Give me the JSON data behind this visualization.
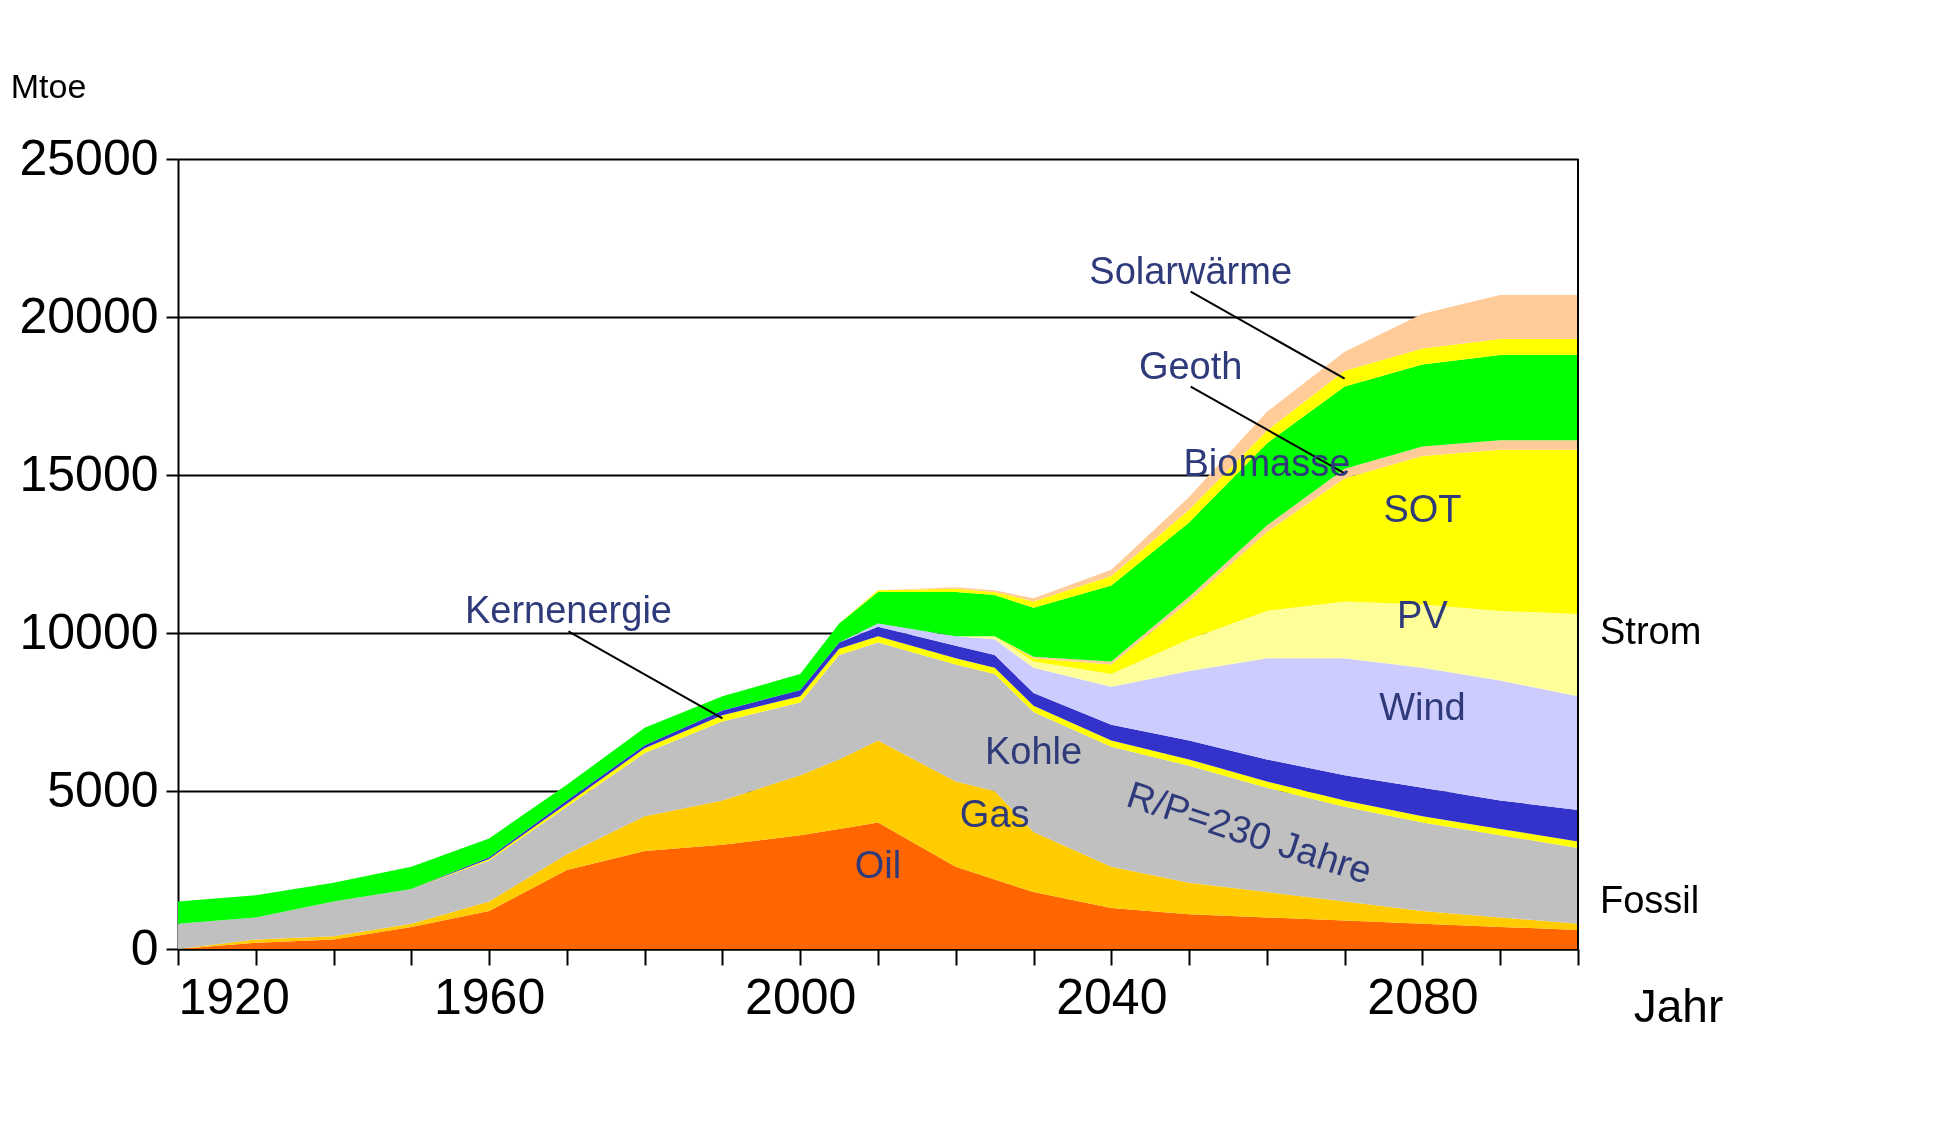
{
  "chart_data": {
    "type": "area",
    "stacked": true,
    "xlabel": "Jahr",
    "ylabel": "Mtoe",
    "x": [
      1920,
      1930,
      1940,
      1950,
      1960,
      1970,
      1980,
      1990,
      2000,
      2005,
      2010,
      2020,
      2025,
      2030,
      2040,
      2050,
      2060,
      2070,
      2080,
      2090,
      2100
    ],
    "series": [
      {
        "name": "Oil",
        "color": "#ff6600",
        "values": [
          0,
          200,
          300,
          700,
          1200,
          2500,
          3100,
          3300,
          3600,
          3800,
          4000,
          2600,
          2200,
          1800,
          1300,
          1100,
          1000,
          900,
          800,
          700,
          600
        ]
      },
      {
        "name": "Gas",
        "color": "#ffcc00",
        "values": [
          0,
          100,
          100,
          100,
          300,
          500,
          1100,
          1400,
          1900,
          2200,
          2600,
          2700,
          2800,
          1900,
          1300,
          1000,
          800,
          600,
          400,
          300,
          200
        ]
      },
      {
        "name": "Kohle",
        "color": "#c0c0c0",
        "values": [
          800,
          700,
          1100,
          1100,
          1300,
          1500,
          2000,
          2500,
          2300,
          3300,
          3100,
          3700,
          3700,
          3800,
          3800,
          3700,
          3300,
          3000,
          2800,
          2600,
          2400
        ]
      },
      {
        "name": "Kernenergie",
        "color": "#ffff00",
        "values": [
          0,
          0,
          0,
          0,
          50,
          100,
          150,
          200,
          200,
          200,
          200,
          200,
          200,
          200,
          200,
          200,
          200,
          200,
          200,
          200,
          200
        ]
      },
      {
        "color": "#3333cc",
        "values": [
          0,
          0,
          0,
          0,
          50,
          100,
          100,
          150,
          200,
          200,
          300,
          400,
          400,
          400,
          500,
          600,
          700,
          800,
          900,
          900,
          1000
        ]
      },
      {
        "name": "Wind",
        "color": "#ccccff",
        "values": [
          0,
          0,
          0,
          0,
          0,
          0,
          0,
          0,
          0,
          0,
          100,
          300,
          500,
          800,
          1200,
          2200,
          3200,
          3700,
          3800,
          3800,
          3600
        ]
      },
      {
        "name": "PV",
        "color": "#ffff99",
        "values": [
          0,
          0,
          0,
          0,
          0,
          0,
          0,
          0,
          0,
          0,
          0,
          0,
          100,
          200,
          400,
          1000,
          1500,
          1800,
          2000,
          2200,
          2600
        ]
      },
      {
        "name": "SOT",
        "color": "#ffff00",
        "values": [
          0,
          0,
          0,
          0,
          0,
          0,
          0,
          0,
          0,
          0,
          0,
          0,
          0,
          100,
          300,
          1200,
          2500,
          3900,
          4700,
          5100,
          5200
        ]
      },
      {
        "name": "Geoth",
        "color": "#ffcc99",
        "values": [
          0,
          0,
          0,
          0,
          0,
          0,
          0,
          0,
          0,
          0,
          0,
          0,
          0,
          50,
          100,
          150,
          200,
          300,
          300,
          300,
          300
        ]
      },
      {
        "name": "Biomasse",
        "color": "#00ff00",
        "values": [
          700,
          700,
          600,
          700,
          600,
          500,
          550,
          450,
          500,
          600,
          1000,
          1400,
          1300,
          1550,
          2400,
          2350,
          2600,
          2600,
          2600,
          2700,
          2700
        ]
      },
      {
        "name": "Solarwärme",
        "color": "#ffff00",
        "values": [
          0,
          0,
          0,
          0,
          0,
          0,
          0,
          0,
          0,
          0,
          50,
          100,
          100,
          200,
          300,
          400,
          400,
          500,
          500,
          500,
          500
        ]
      },
      {
        "color": "#ffcc99",
        "values": [
          0,
          0,
          0,
          0,
          0,
          0,
          0,
          0,
          0,
          0,
          0,
          50,
          50,
          100,
          200,
          400,
          600,
          600,
          1100,
          1400,
          1400
        ]
      }
    ],
    "xlim": [
      1920,
      2100
    ],
    "xticks": [
      1920,
      {
        "value": 1930,
        "label": null
      },
      {
        "value": 1940,
        "label": null
      },
      {
        "value": 1950,
        "label": null
      },
      1960,
      {
        "value": 1970,
        "label": null
      },
      {
        "value": 1980,
        "label": null
      },
      {
        "value": 1990,
        "label": null
      },
      2000,
      {
        "value": 2010,
        "label": null
      },
      {
        "value": 2020,
        "label": null
      },
      {
        "value": 2030,
        "label": null
      },
      2040,
      {
        "value": 2050,
        "label": null
      },
      {
        "value": 2060,
        "label": null
      },
      {
        "value": 2070,
        "label": null
      },
      2080,
      {
        "value": 2090,
        "label": null
      },
      {
        "value": 2100,
        "label": null
      }
    ],
    "ylim": [
      0,
      25000
    ],
    "yticks": [
      0,
      5000,
      10000,
      15000,
      20000,
      25000
    ],
    "grid": "y",
    "legend": false,
    "annotations": [
      "R/P=230 Jahre",
      "Strom",
      "Fossil"
    ]
  }
}
